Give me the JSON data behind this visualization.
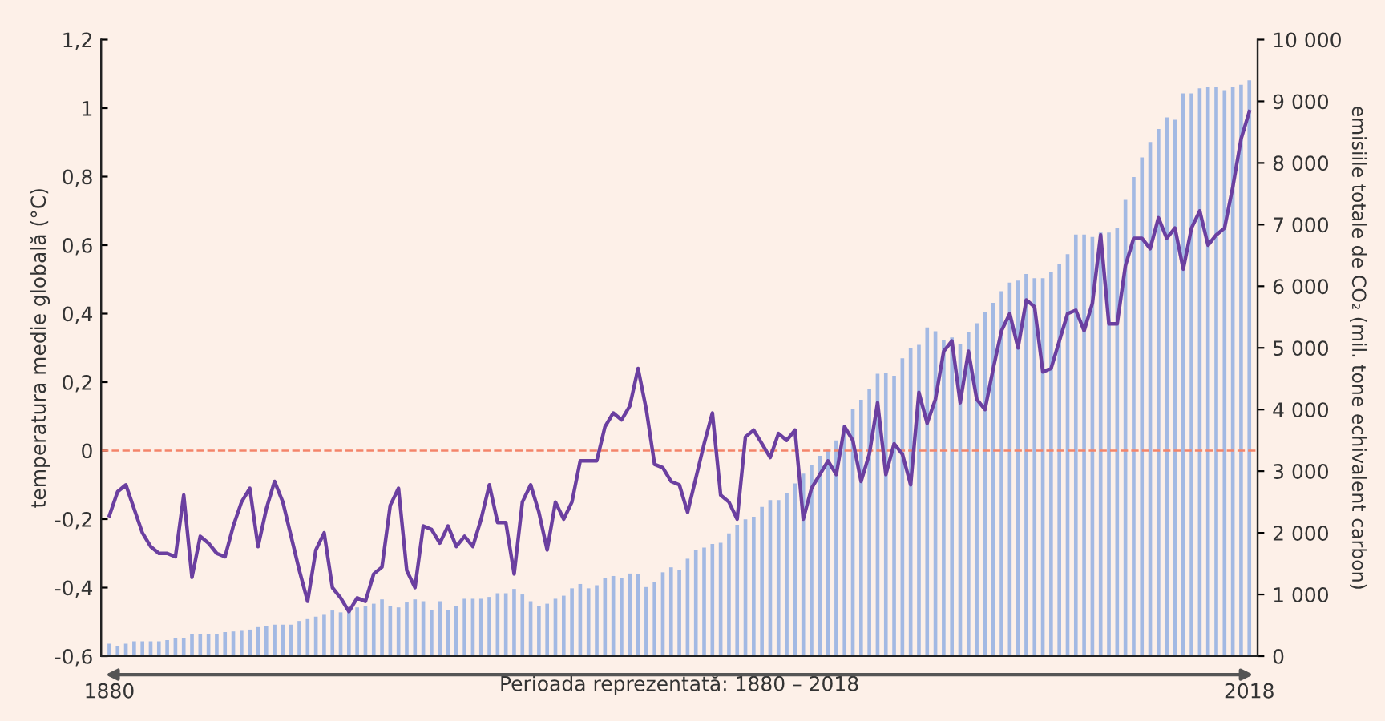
{
  "chart_data": {
    "type": "bar",
    "xlabel": "Perioada reprezentată: 1880 – 2018",
    "ylabel": "temperatura medie globală (°C)",
    "y2label": "emisiile totale de CO₂ (mil. tone echivalent carbon)",
    "x": [
      1880,
      1881,
      1882,
      1883,
      1884,
      1885,
      1886,
      1887,
      1888,
      1889,
      1890,
      1891,
      1892,
      1893,
      1894,
      1895,
      1896,
      1897,
      1898,
      1899,
      1900,
      1901,
      1902,
      1903,
      1904,
      1905,
      1906,
      1907,
      1908,
      1909,
      1910,
      1911,
      1912,
      1913,
      1914,
      1915,
      1916,
      1917,
      1918,
      1919,
      1920,
      1921,
      1922,
      1923,
      1924,
      1925,
      1926,
      1927,
      1928,
      1929,
      1930,
      1931,
      1932,
      1933,
      1934,
      1935,
      1936,
      1937,
      1938,
      1939,
      1940,
      1941,
      1942,
      1943,
      1944,
      1945,
      1946,
      1947,
      1948,
      1949,
      1950,
      1951,
      1952,
      1953,
      1954,
      1955,
      1956,
      1957,
      1958,
      1959,
      1960,
      1961,
      1962,
      1963,
      1964,
      1965,
      1966,
      1967,
      1968,
      1969,
      1970,
      1971,
      1972,
      1973,
      1974,
      1975,
      1976,
      1977,
      1978,
      1979,
      1980,
      1981,
      1982,
      1983,
      1984,
      1985,
      1986,
      1987,
      1988,
      1989,
      1990,
      1991,
      1992,
      1993,
      1994,
      1995,
      1996,
      1997,
      1998,
      1999,
      2000,
      2001,
      2002,
      2003,
      2004,
      2005,
      2006,
      2007,
      2008,
      2009,
      2010,
      2011,
      2012,
      2013,
      2014,
      2015,
      2016,
      2017,
      2018
    ],
    "series": [
      {
        "axis": "y2",
        "color": "#a3b9e3",
        "values": [
          200,
          160,
          200,
          240,
          240,
          240,
          240,
          260,
          300,
          300,
          350,
          360,
          360,
          360,
          390,
          400,
          410,
          430,
          470,
          490,
          510,
          510,
          510,
          570,
          600,
          640,
          670,
          740,
          710,
          790,
          790,
          810,
          850,
          920,
          810,
          790,
          870,
          920,
          890,
          750,
          890,
          750,
          810,
          930,
          930,
          930,
          960,
          1020,
          1020,
          1090,
          1000,
          890,
          810,
          850,
          930,
          980,
          1100,
          1170,
          1100,
          1150,
          1270,
          1300,
          1270,
          1340,
          1330,
          1120,
          1200,
          1360,
          1440,
          1400,
          1580,
          1730,
          1760,
          1820,
          1840,
          1990,
          2130,
          2220,
          2260,
          2420,
          2530,
          2530,
          2640,
          2800,
          2960,
          3100,
          3250,
          3350,
          3500,
          3740,
          4010,
          4160,
          4340,
          4580,
          4600,
          4550,
          4830,
          5000,
          5050,
          5330,
          5270,
          5120,
          5170,
          5060,
          5250,
          5400,
          5580,
          5730,
          5920,
          6060,
          6090,
          6200,
          6130,
          6130,
          6230,
          6360,
          6520,
          6840,
          6840,
          6800,
          6870,
          6870,
          6950,
          7400,
          7770,
          8090,
          8340,
          8550,
          8740,
          8700,
          9130,
          9130,
          9210,
          9240,
          9240,
          9180,
          9240,
          9270,
          9340
        ]
      },
      {
        "type": "line",
        "axis": "y",
        "color": "#6b3fa0",
        "values": [
          -0.19,
          -0.12,
          -0.1,
          -0.17,
          -0.24,
          -0.28,
          -0.3,
          -0.3,
          -0.31,
          -0.13,
          -0.37,
          -0.25,
          -0.27,
          -0.3,
          -0.31,
          -0.22,
          -0.15,
          -0.11,
          -0.28,
          -0.17,
          -0.09,
          -0.15,
          -0.25,
          -0.35,
          -0.44,
          -0.29,
          -0.24,
          -0.4,
          -0.43,
          -0.47,
          -0.43,
          -0.44,
          -0.36,
          -0.34,
          -0.16,
          -0.11,
          -0.35,
          -0.4,
          -0.22,
          -0.23,
          -0.27,
          -0.22,
          -0.28,
          -0.25,
          -0.28,
          -0.2,
          -0.1,
          -0.21,
          -0.21,
          -0.36,
          -0.15,
          -0.1,
          -0.18,
          -0.29,
          -0.15,
          -0.2,
          -0.15,
          -0.03,
          -0.03,
          -0.03,
          0.07,
          0.11,
          0.09,
          0.13,
          0.24,
          0.12,
          -0.04,
          -0.05,
          -0.09,
          -0.1,
          -0.18,
          -0.08,
          0.02,
          0.11,
          -0.13,
          -0.15,
          -0.2,
          0.04,
          0.06,
          0.02,
          -0.02,
          0.05,
          0.03,
          0.06,
          -0.2,
          -0.11,
          -0.07,
          -0.03,
          -0.07,
          0.07,
          0.03,
          -0.09,
          -0.01,
          0.14,
          -0.07,
          0.02,
          -0.01,
          -0.1,
          0.17,
          0.08,
          0.15,
          0.29,
          0.32,
          0.14,
          0.29,
          0.15,
          0.12,
          0.24,
          0.35,
          0.4,
          0.3,
          0.44,
          0.42,
          0.23,
          0.24,
          0.32,
          0.4,
          0.41,
          0.35,
          0.43,
          0.63,
          0.37,
          0.37,
          0.54,
          0.62,
          0.62,
          0.59,
          0.68,
          0.62,
          0.65,
          0.53,
          0.65,
          0.7,
          0.6,
          0.63,
          0.65,
          0.77,
          0.91,
          0.99
        ]
      }
    ],
    "xlim": [
      1879,
      2019
    ],
    "xticks": [
      1880,
      2018
    ],
    "ylim": [
      -0.6,
      1.2
    ],
    "yticks": [
      {
        "value": -0.6,
        "label": "-0,6"
      },
      {
        "value": -0.4,
        "label": "-0,4"
      },
      {
        "value": -0.2,
        "label": "-0,2"
      },
      0,
      {
        "value": 0.2,
        "label": "0,2"
      },
      {
        "value": 0.4,
        "label": "0,4"
      },
      {
        "value": 0.6,
        "label": "0,6"
      },
      {
        "value": 0.8,
        "label": "0,8"
      },
      1,
      {
        "value": 1.2,
        "label": "1,2"
      }
    ],
    "y2lim": [
      0,
      10000
    ],
    "y2ticks": [
      0,
      {
        "value": 1000,
        "label": "1 000"
      },
      {
        "value": 2000,
        "label": "2 000"
      },
      {
        "value": 3000,
        "label": "3 000"
      },
      {
        "value": 4000,
        "label": "4 000"
      },
      {
        "value": 5000,
        "label": "5 000"
      },
      {
        "value": 6000,
        "label": "6 000"
      },
      {
        "value": 7000,
        "label": "7 000"
      },
      {
        "value": 8000,
        "label": "8 000"
      },
      {
        "value": 9000,
        "label": "9 000"
      },
      {
        "value": 10000,
        "label": "10 000"
      }
    ],
    "ref_lines": [
      {
        "axis": "y",
        "value": 0,
        "color": "#f4846a",
        "line_style": "dashed"
      }
    ],
    "grid": false,
    "legend": false
  }
}
